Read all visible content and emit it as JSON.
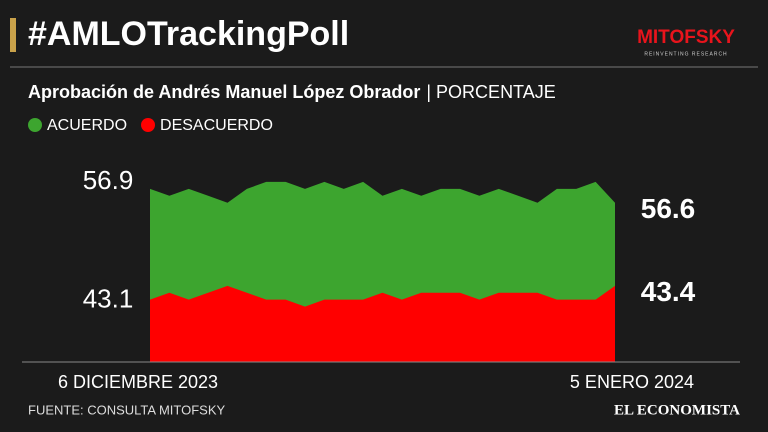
{
  "header": {
    "title": "#AMLOTrackingPoll",
    "logo": "MITOFSKY",
    "logo_tagline": "REINVENTING RESEARCH"
  },
  "chart_data": {
    "type": "area",
    "title": "Aprobación de Andrés Manuel López Obrador",
    "subtitle": "| PORCENTAJE",
    "categories": [
      "6 DICIEMBRE 2023",
      null,
      null,
      null,
      null,
      null,
      null,
      null,
      null,
      null,
      null,
      null,
      null,
      null,
      null,
      null,
      null,
      null,
      null,
      null,
      null,
      null,
      null,
      null,
      "5 ENERO 2024"
    ],
    "series": [
      {
        "name": "ACUERDO",
        "color": "#3da52f",
        "values": [
          56.8,
          56.7,
          56.8,
          56.7,
          56.6,
          56.8,
          56.9,
          56.9,
          56.8,
          56.9,
          56.8,
          56.9,
          56.7,
          56.8,
          56.7,
          56.8,
          56.8,
          56.7,
          56.8,
          56.7,
          56.6,
          56.8,
          56.8,
          56.9,
          56.6
        ]
      },
      {
        "name": "DESACUERDO",
        "color": "#ff0000",
        "axis": "y2",
        "values": [
          43.2,
          43.3,
          43.2,
          43.3,
          43.4,
          43.3,
          43.2,
          43.2,
          43.1,
          43.2,
          43.2,
          43.2,
          43.3,
          43.2,
          43.3,
          43.3,
          43.3,
          43.2,
          43.3,
          43.3,
          43.3,
          43.2,
          43.2,
          43.2,
          43.4
        ]
      }
    ],
    "ylim": [
      54.3,
      57.0
    ],
    "yticks": [
      56.9
    ],
    "y2lim": [
      42.3,
      45.0
    ],
    "y2ticks": [
      43.1
    ],
    "source": "FUENTE: CONSULTA MITOFSKY",
    "publisher": "EL ECONOMISTA"
  }
}
